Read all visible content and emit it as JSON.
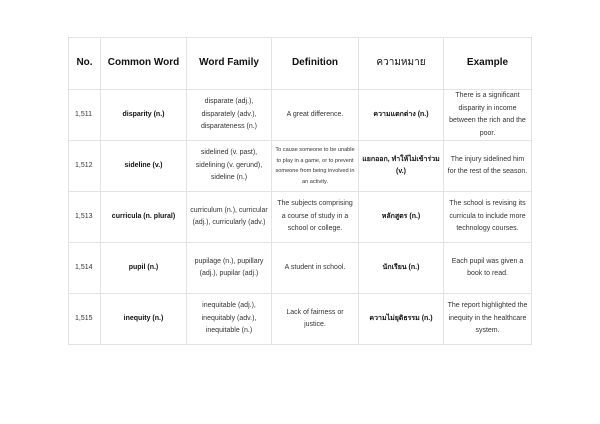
{
  "headers": [
    "No.",
    "Common Word",
    "Word Family",
    "Definition",
    "ความหมาย",
    "Example"
  ],
  "rows": [
    {
      "no": "1,511",
      "word": "disparity (n.)",
      "family": "disparate (adj.), disparately (adv.), disparateness (n.)",
      "definition": "A great difference.",
      "thai": "ความแตกต่าง (n.)",
      "example": "There is a significant disparity in income between the rich and the poor."
    },
    {
      "no": "1,512",
      "word": "sideline (v.)",
      "family": "sidelined (v. past), sidelining (v. gerund), sideline (n.)",
      "definition": "To cause someone to be unable to play in a game, or to prevent someone from being involved in an activity.",
      "thai": "แยกออก, ทำให้ไม่เข้าร่วม (v.)",
      "example": "The injury sidelined him for the rest of the season."
    },
    {
      "no": "1,513",
      "word": "curricula (n. plural)",
      "family": "curriculum (n.), curricular (adj.), curricularly (adv.)",
      "definition": "The subjects comprising a course of study in a school or college.",
      "thai": "หลักสูตร (n.)",
      "example": "The school is revising its curricula to include more technology courses."
    },
    {
      "no": "1,514",
      "word": "pupil (n.)",
      "family": "pupilage (n.), pupillary (adj.), pupilar (adj.)",
      "definition": "A student in school.",
      "thai": "นักเรียน (n.)",
      "example": "Each pupil was given a book to read."
    },
    {
      "no": "1,515",
      "word": "inequity (n.)",
      "family": "inequitable (adj.), inequitably (adv.), inequitable (n.)",
      "definition": "Lack of fairness or justice.",
      "thai": "ความไม่ยุติธรรม (n.)",
      "example": "The report highlighted the inequity in the healthcare system."
    }
  ]
}
